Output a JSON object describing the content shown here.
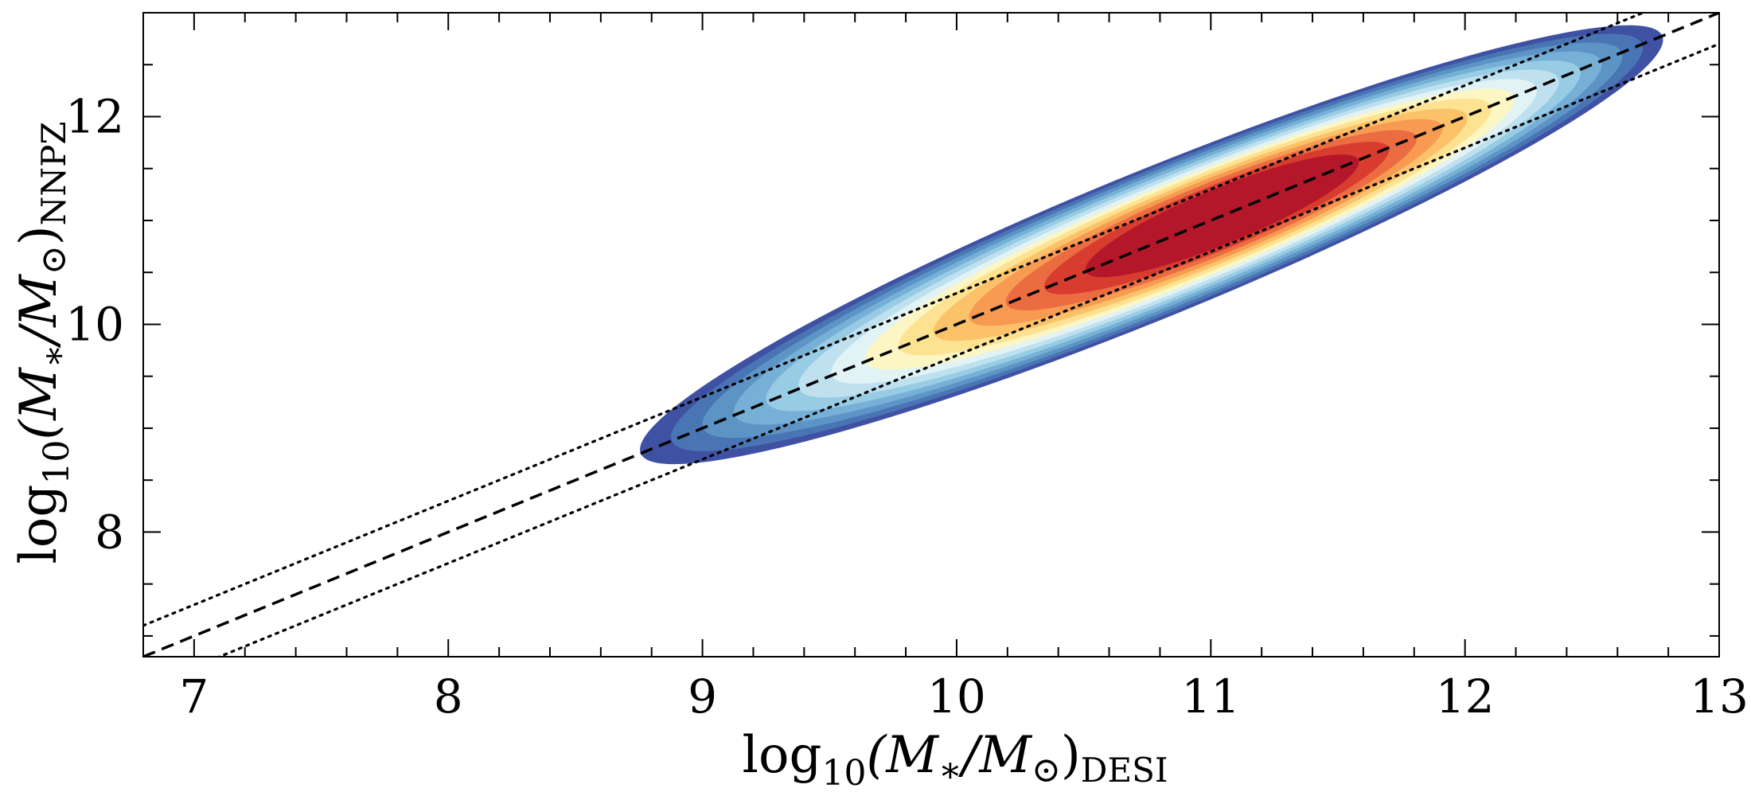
{
  "chart_data": {
    "type": "contour",
    "title": "",
    "xlabel": {
      "main": "log",
      "sub": "10",
      "expr": "(M",
      "star": "∗",
      "slash": "/M",
      "sun": "⊙",
      "close": ")",
      "tag": "DESI"
    },
    "ylabel": {
      "main": "log",
      "sub": "10",
      "expr": "(M",
      "star": "∗",
      "slash": "/M",
      "sun": "⊙",
      "close": ")",
      "tag": "NNPZ"
    },
    "xlim": [
      6.8,
      13.0
    ],
    "ylim": [
      6.8,
      13.0
    ],
    "xticks": [
      7,
      8,
      9,
      10,
      11,
      12,
      13
    ],
    "xtick_labels": [
      "7",
      "8",
      "9",
      "10",
      "11",
      "12",
      "13"
    ],
    "yticks": [
      8,
      10,
      12
    ],
    "ytick_labels": [
      "8",
      "10",
      "12"
    ],
    "x_minor_step": 0.2,
    "y_minor_step": 0.5,
    "grid": false,
    "density": {
      "center": [
        10.95,
        10.95
      ],
      "major_axis_slope_deg": 42,
      "levels": 13,
      "colormap": "RdYlBu_r",
      "colors": [
        "#3f51a3",
        "#4a75b4",
        "#5d94c6",
        "#77b0d6",
        "#98cce4",
        "#bfe1ef",
        "#e2f3f5",
        "#fbf6c4",
        "#fde391",
        "#fcc26a",
        "#f79a52",
        "#ec6c42",
        "#d73c2f",
        "#b5172a"
      ],
      "extent_x": [
        7.88,
        11.95
      ],
      "extent_y": [
        8.35,
        12.05
      ]
    },
    "series": [
      {
        "style": "dashed",
        "x": [
          6.8,
          13.0
        ],
        "y": [
          6.8,
          13.0
        ]
      },
      {
        "style": "dotted",
        "x": [
          6.8,
          13.0
        ],
        "y": [
          7.1,
          13.3
        ]
      },
      {
        "style": "dotted",
        "x": [
          6.8,
          13.0
        ],
        "y": [
          6.5,
          12.7
        ]
      }
    ]
  }
}
